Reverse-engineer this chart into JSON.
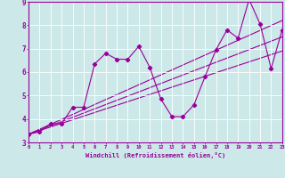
{
  "xlabel": "Windchill (Refroidissement éolien,°C)",
  "xlim": [
    0,
    23
  ],
  "ylim": [
    3,
    9
  ],
  "xticks": [
    0,
    1,
    2,
    3,
    4,
    5,
    6,
    7,
    8,
    9,
    10,
    11,
    12,
    13,
    14,
    15,
    16,
    17,
    18,
    19,
    20,
    21,
    22,
    23
  ],
  "yticks": [
    3,
    4,
    5,
    6,
    7,
    8,
    9
  ],
  "bg_color": "#cce8e8",
  "line_color": "#990099",
  "curve1_x": [
    0,
    1,
    2,
    3,
    4,
    5,
    6,
    7,
    8,
    9,
    10,
    11,
    12,
    13,
    14,
    15,
    16,
    17,
    18,
    19,
    20,
    21,
    22,
    23
  ],
  "curve1_y": [
    3.35,
    3.45,
    3.8,
    3.8,
    4.5,
    4.5,
    6.35,
    6.8,
    6.55,
    6.55,
    7.1,
    6.2,
    4.85,
    4.1,
    4.1,
    4.6,
    5.8,
    6.95,
    7.8,
    7.45,
    9.1,
    8.05,
    6.15,
    7.8
  ],
  "line1_x": [
    0,
    23
  ],
  "line1_y": [
    3.35,
    6.9
  ],
  "line2_x": [
    0,
    23
  ],
  "line2_y": [
    3.35,
    7.5
  ],
  "line3_x": [
    0,
    23
  ],
  "line3_y": [
    3.35,
    8.2
  ]
}
